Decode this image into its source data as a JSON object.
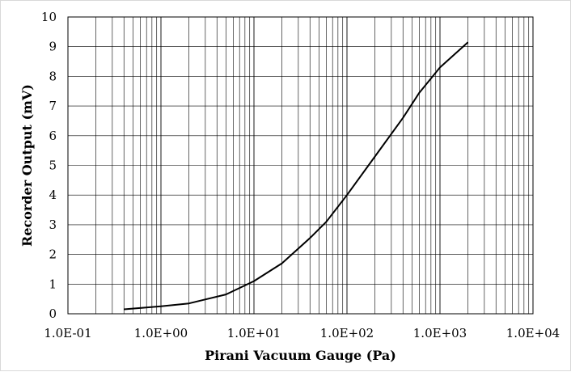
{
  "chart_data": {
    "type": "line",
    "xlabel": "Pirani Vacuum Gauge (Pa)",
    "ylabel": "Recorder Output (mV)",
    "x_scale": "log",
    "xlim": [
      0.1,
      10000
    ],
    "ylim": [
      0,
      10
    ],
    "x_tick_labels": [
      "1.0E-01",
      "1.0E+00",
      "1.0E+01",
      "1.0E+02",
      "1.0E+03",
      "1.0E+04"
    ],
    "y_tick_labels": [
      "0",
      "1",
      "2",
      "3",
      "4",
      "5",
      "6",
      "7",
      "8",
      "9",
      "10"
    ],
    "grid": true,
    "legend": "none",
    "line_color": "#000000",
    "series": [
      {
        "x": [
          0.4,
          1,
          2,
          5,
          10,
          20,
          40,
          60,
          100,
          200,
          400,
          600,
          1000,
          2000
        ],
        "y": [
          0.15,
          0.25,
          0.35,
          0.65,
          1.1,
          1.7,
          2.55,
          3.1,
          4.0,
          5.3,
          6.6,
          7.45,
          8.3,
          9.15
        ]
      }
    ]
  }
}
